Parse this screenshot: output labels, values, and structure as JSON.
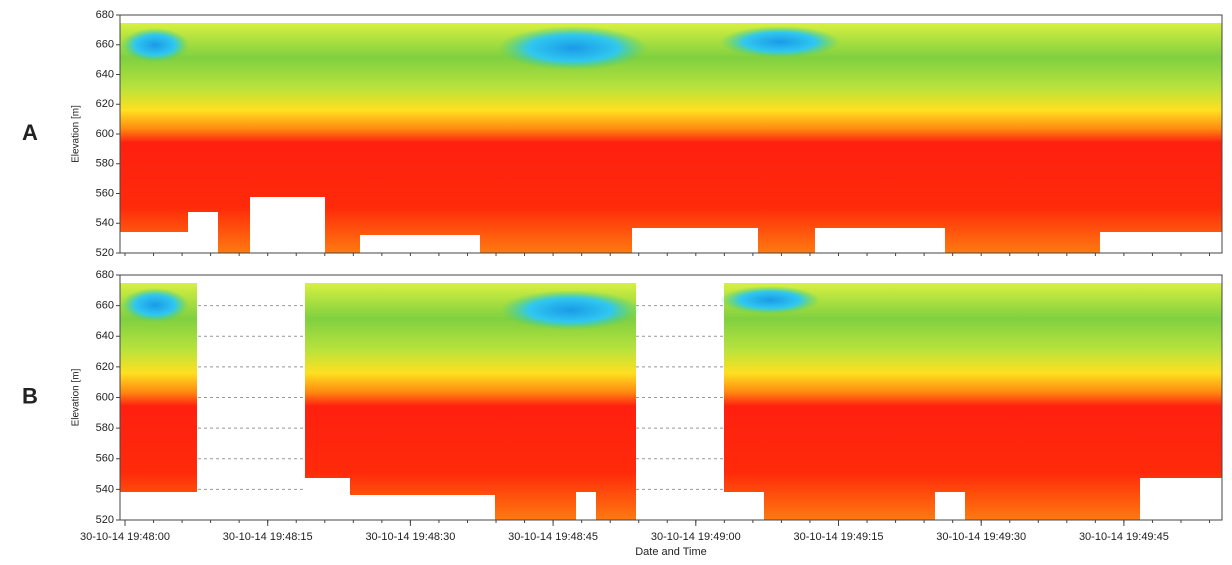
{
  "chart_data": [
    {
      "type": "heatmap",
      "panel": "A",
      "y_label": "Elevation [m]",
      "ylim": [
        520,
        680
      ],
      "yticks": [
        520,
        540,
        560,
        580,
        600,
        620,
        640,
        660,
        680
      ],
      "grid": false
    },
    {
      "type": "heatmap",
      "panel": "B",
      "y_label": "Elevation [m]",
      "ylim": [
        520,
        680
      ],
      "yticks": [
        520,
        540,
        560,
        580,
        600,
        620,
        640,
        660,
        680
      ],
      "grid": true,
      "categories": [
        "30-10-14 19:48:00",
        "30-10-14 19:48:15",
        "30-10-14 19:48:30",
        "30-10-14 19:48:45",
        "30-10-14 19:49:00",
        "30-10-14 19:49:15",
        "30-10-14 19:49:30",
        "30-10-14 19:49:45"
      ],
      "x_label": "Date and Time"
    }
  ]
}
